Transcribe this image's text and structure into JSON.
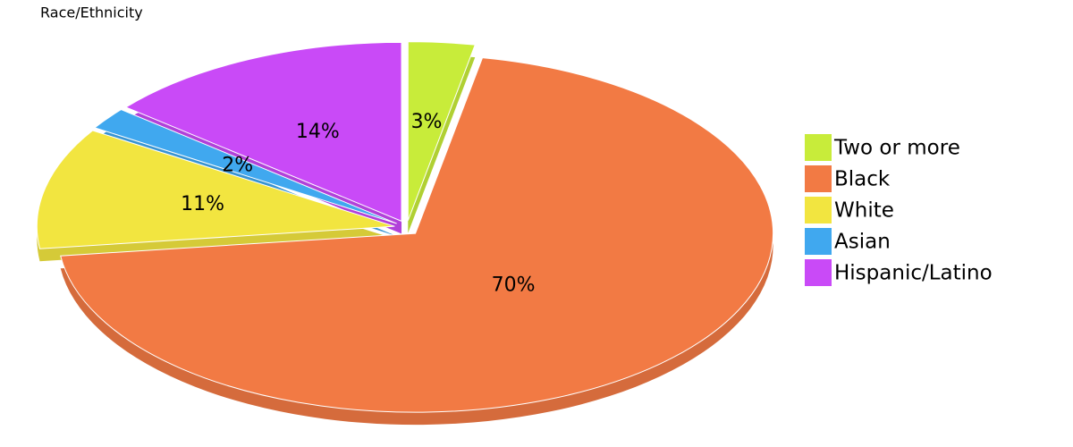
{
  "chart_data": {
    "type": "pie",
    "title": "Race/Ethnicity",
    "categories": [
      "Two or more",
      "Black",
      "White",
      "Asian",
      "Hispanic/Latino"
    ],
    "values": [
      3,
      70,
      11,
      2,
      14
    ],
    "value_labels": [
      "3%",
      "70%",
      "11%",
      "2%",
      "14%"
    ],
    "colors": [
      "#c8ec3a",
      "#f27a44",
      "#f2e540",
      "#40a8ef",
      "#c94af7"
    ]
  }
}
